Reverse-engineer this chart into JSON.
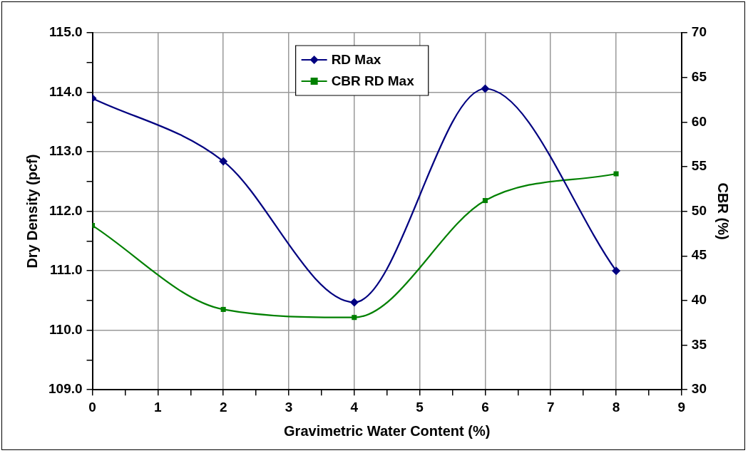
{
  "chart_data": {
    "type": "line",
    "xlabel": "Gravimetric Water Content (%)",
    "ylabel": "Dry Density (pcf)",
    "y2label": "CBR (%)",
    "x": [
      0,
      2,
      4,
      6,
      8
    ],
    "series": [
      {
        "name": "RD Max",
        "color": "#000080",
        "values": [
          113.9,
          112.84,
          110.47,
          114.06,
          111.0
        ],
        "marker": "diamond"
      },
      {
        "name": "CBR RD Max",
        "color": "#008000",
        "values": [
          48.4,
          39.0,
          38.1,
          51.2,
          54.2
        ],
        "axis": "y2",
        "marker": "square"
      }
    ],
    "xlim": [
      0,
      9
    ],
    "xticks": [
      0,
      {
        "value": 0.5,
        "label": null
      },
      1,
      {
        "value": 1.5,
        "label": null
      },
      2,
      {
        "value": 2.5,
        "label": null
      },
      3,
      {
        "value": 3.5,
        "label": null
      },
      4,
      {
        "value": 4.5,
        "label": null
      },
      5,
      {
        "value": 5.5,
        "label": null
      },
      6,
      {
        "value": 6.5,
        "label": null
      },
      7,
      {
        "value": 7.5,
        "label": null
      },
      8,
      {
        "value": 8.5,
        "label": null
      },
      9
    ],
    "ylim": [
      109,
      115
    ],
    "yticks": [
      {
        "value": 109,
        "label": "109.0"
      },
      {
        "value": 109.5,
        "label": null
      },
      {
        "value": 110,
        "label": "110.0"
      },
      {
        "value": 110.5,
        "label": null
      },
      {
        "value": 111,
        "label": "111.0"
      },
      {
        "value": 111.5,
        "label": null
      },
      {
        "value": 112,
        "label": "112.0"
      },
      {
        "value": 112.5,
        "label": null
      },
      {
        "value": 113,
        "label": "113.0"
      },
      {
        "value": 113.5,
        "label": null
      },
      {
        "value": 114,
        "label": "114.0"
      },
      {
        "value": 114.5,
        "label": null
      },
      {
        "value": 115,
        "label": "115.0"
      }
    ],
    "y2lim": [
      30,
      70
    ],
    "y2ticks": [
      30,
      35,
      40,
      45,
      50,
      55,
      60,
      65,
      70
    ],
    "grid": true,
    "legend": "top",
    "line_style": "solid"
  }
}
